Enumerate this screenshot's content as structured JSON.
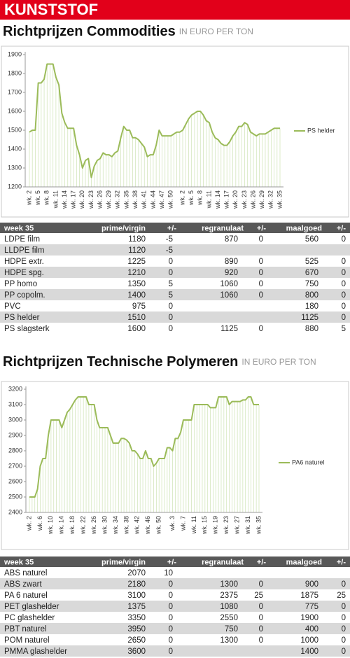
{
  "banner": "KUNSTSTOF",
  "headings": [
    {
      "title": "Richtprijzen Commodities",
      "unit": "IN EURO PER TON"
    },
    {
      "title": "Richtprijzen Technische Polymeren",
      "unit": "IN EURO PER TON"
    }
  ],
  "chart_data": [
    {
      "type": "line",
      "legend": "right",
      "categories": [
        "wk. 2",
        null,
        null,
        "wk. 5",
        null,
        null,
        "wk. 8",
        null,
        null,
        "wk. 11",
        null,
        null,
        "wk. 14",
        null,
        null,
        "wk. 17",
        null,
        null,
        "wk. 20",
        null,
        null,
        "wk. 23",
        null,
        null,
        "wk. 26",
        null,
        null,
        "wk. 29",
        null,
        null,
        "wk. 32",
        null,
        null,
        "wk. 35",
        null,
        null,
        "wk. 38",
        null,
        null,
        "wk. 41",
        null,
        null,
        "wk. 44",
        null,
        null,
        "wk. 47",
        null,
        null,
        "wk. 50",
        null,
        null,
        null,
        "wk. 2",
        null,
        null,
        "wk. 5",
        null,
        null,
        "wk. 8",
        null,
        null,
        "wk. 11",
        null,
        null,
        "wk. 14",
        null,
        null,
        "wk. 17",
        null,
        null,
        "wk. 20",
        null,
        null,
        "wk. 23",
        null,
        null,
        "wk. 26",
        null,
        null,
        "wk. 29",
        null,
        null,
        "wk. 32",
        null,
        null,
        "wk. 35"
      ],
      "series": [
        {
          "name": "PS helder",
          "color": "#9bbb59",
          "values": [
            1490,
            1500,
            1500,
            1750,
            1750,
            1770,
            1850,
            1850,
            1850,
            1780,
            1740,
            1590,
            1540,
            1510,
            1510,
            1510,
            1420,
            1370,
            1300,
            1340,
            1350,
            1250,
            1310,
            1340,
            1350,
            1380,
            1370,
            1370,
            1360,
            1380,
            1390,
            1460,
            1520,
            1500,
            1500,
            1460,
            1460,
            1450,
            1430,
            1410,
            1360,
            1370,
            1370,
            1420,
            1500,
            1470,
            1470,
            1470,
            1470,
            1480,
            1490,
            1490,
            1500,
            1530,
            1560,
            1580,
            1590,
            1600,
            1600,
            1580,
            1550,
            1540,
            1490,
            1460,
            1450,
            1430,
            1420,
            1420,
            1440,
            1470,
            1490,
            1520,
            1520,
            1540,
            1530,
            1490,
            1480,
            1470,
            1480,
            1480,
            1480,
            1490,
            1500,
            1510,
            1510,
            1510
          ]
        }
      ],
      "ylim": [
        1200,
        1900
      ],
      "yticks": [
        1200,
        1300,
        1400,
        1500,
        1600,
        1700,
        1800,
        1900
      ]
    },
    {
      "type": "line",
      "legend": "right",
      "categories": [
        "wk. 2",
        null,
        null,
        null,
        "wk. 6",
        null,
        null,
        null,
        "wk. 10",
        null,
        null,
        null,
        "wk. 14",
        null,
        null,
        null,
        "wk. 18",
        null,
        null,
        null,
        "wk. 22",
        null,
        null,
        null,
        "wk. 26",
        null,
        null,
        null,
        "wk. 30",
        null,
        null,
        null,
        "wk. 34",
        null,
        null,
        null,
        "wk. 38",
        null,
        null,
        null,
        "wk. 42",
        null,
        null,
        null,
        "wk. 46",
        null,
        null,
        null,
        "wk. 50",
        null,
        null,
        null,
        null,
        "wk. 3",
        null,
        null,
        null,
        "wk. 7",
        null,
        null,
        null,
        "wk. 11",
        null,
        null,
        null,
        "wk. 15",
        null,
        null,
        null,
        "wk. 19",
        null,
        null,
        null,
        "wk. 23",
        null,
        null,
        null,
        "wk. 27",
        null,
        null,
        null,
        "wk. 31",
        null,
        null,
        null,
        "wk. 35"
      ],
      "series": [
        {
          "name": "PA6 naturel",
          "color": "#9bbb59",
          "values": [
            2500,
            2500,
            2500,
            2550,
            2700,
            2750,
            2750,
            2900,
            3000,
            3000,
            3000,
            3000,
            2950,
            3000,
            3050,
            3070,
            3100,
            3130,
            3150,
            3150,
            3150,
            3150,
            3100,
            3100,
            3100,
            3000,
            2950,
            2950,
            2950,
            2950,
            2900,
            2850,
            2850,
            2850,
            2880,
            2880,
            2870,
            2850,
            2800,
            2800,
            2780,
            2750,
            2750,
            2800,
            2750,
            2750,
            2700,
            2720,
            2750,
            2750,
            2750,
            2820,
            2820,
            2800,
            2880,
            2880,
            2920,
            3000,
            3000,
            3000,
            3000,
            3100,
            3100,
            3100,
            3100,
            3100,
            3100,
            3080,
            3080,
            3080,
            3150,
            3150,
            3150,
            3150,
            3100,
            3120,
            3120,
            3120,
            3120,
            3130,
            3130,
            3150,
            3150,
            3100,
            3100,
            3100
          ]
        }
      ],
      "ylim": [
        2400,
        3200
      ],
      "yticks": [
        2400,
        2500,
        2600,
        2700,
        2800,
        2900,
        3000,
        3100,
        3200
      ]
    }
  ],
  "tables": [
    {
      "header": [
        "week 35",
        "prime/virgin",
        "+/-",
        "regranulaat",
        "+/-",
        "maalgoed",
        "+/-"
      ],
      "rows": [
        [
          "LDPE film",
          1180,
          -5,
          870,
          0,
          560,
          0
        ],
        [
          "LLDPE film",
          1120,
          -5,
          null,
          null,
          null,
          null
        ],
        [
          "HDPE extr.",
          1225,
          0,
          890,
          0,
          525,
          0
        ],
        [
          "HDPE spg.",
          1210,
          0,
          920,
          0,
          670,
          0
        ],
        [
          "PP homo",
          1350,
          5,
          1060,
          0,
          750,
          0
        ],
        [
          "PP copolm.",
          1400,
          5,
          1060,
          0,
          800,
          0
        ],
        [
          "PVC",
          975,
          0,
          null,
          null,
          180,
          0
        ],
        [
          "PS helder",
          1510,
          0,
          null,
          null,
          1125,
          0
        ],
        [
          "PS slagsterk",
          1600,
          0,
          1125,
          0,
          880,
          5
        ]
      ]
    },
    {
      "header": [
        "week 35",
        "prime/virgin",
        "+/-",
        "regranulaat",
        "+/-",
        "maalgoed",
        "+/-"
      ],
      "rows": [
        [
          "ABS naturel",
          2070,
          10,
          null,
          null,
          null,
          null
        ],
        [
          "ABS zwart",
          2180,
          0,
          1300,
          0,
          900,
          0
        ],
        [
          "PA 6 naturel",
          3100,
          0,
          2375,
          25,
          1875,
          25
        ],
        [
          "PET glashelder",
          1375,
          0,
          1080,
          0,
          775,
          0
        ],
        [
          "PC glashelder",
          3350,
          0,
          2550,
          0,
          1900,
          0
        ],
        [
          "PBT naturel",
          3950,
          0,
          750,
          0,
          400,
          0
        ],
        [
          "POM naturel",
          2650,
          0,
          1300,
          0,
          1000,
          0
        ],
        [
          "PMMA glashelder",
          3600,
          0,
          null,
          null,
          1400,
          0
        ]
      ]
    }
  ]
}
